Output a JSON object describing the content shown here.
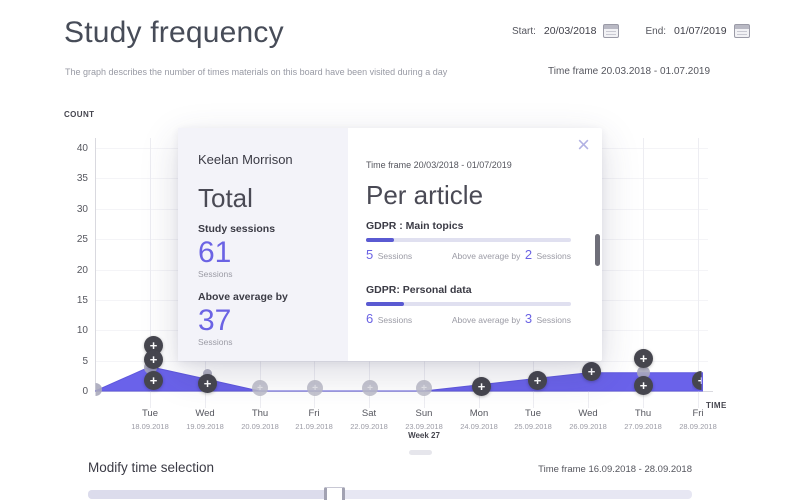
{
  "header": {
    "title": "Study frequency",
    "description": "The graph describes the number of times materials on this board have been visited during a day",
    "start_label": "Start:",
    "start_value": "20/03/2018",
    "end_label": "End:",
    "end_value": "01/07/2019",
    "time_frame": "Time frame 20.03.2018 - 01.07.2019"
  },
  "icons": {
    "plus": "+",
    "close": "×"
  },
  "colors": {
    "accent": "#6b63e4",
    "area_fill": "#6a62ea",
    "bar_fill": "#5a5ad2",
    "add_button": "#46464e"
  },
  "chart_data": {
    "type": "area",
    "title": "Study frequency",
    "ylabel": "COUNT",
    "xlabel": "TIME",
    "week_annotation": "Week 27",
    "ylim": [
      0,
      40
    ],
    "y_tick_labels": [
      "40",
      "35",
      "30",
      "25",
      "20",
      "15",
      "10",
      "5",
      "0"
    ],
    "grid": true,
    "leading_edge_value": 0,
    "days": [
      {
        "name": "Tue",
        "date": "18.09.2018"
      },
      {
        "name": "Wed",
        "date": "19.09.2018"
      },
      {
        "name": "Thu",
        "date": "20.09.2018"
      },
      {
        "name": "Fri",
        "date": "21.09.2018"
      },
      {
        "name": "Sat",
        "date": "22.09.2018"
      },
      {
        "name": "Sun",
        "date": "23.09.2018"
      },
      {
        "name": "Mon",
        "date": "24.09.2018"
      },
      {
        "name": "Tue",
        "date": "25.09.2018"
      },
      {
        "name": "Wed",
        "date": "26.09.2018"
      },
      {
        "name": "Thu",
        "date": "27.09.2018"
      },
      {
        "name": "Fri",
        "date": "28.09.2018"
      }
    ],
    "values": [
      4,
      2,
      0,
      0,
      0,
      0,
      1,
      2,
      3,
      3,
      3
    ]
  },
  "modal": {
    "student_name": "Keelan Morrison",
    "time_frame": "Time frame 20/03/2018 - 01/07/2019",
    "total": {
      "heading": "Total",
      "sessions_label": "Study sessions",
      "sessions_value": "61",
      "sessions_unit": "Sessions",
      "above_label": "Above average by",
      "above_value": "37",
      "above_unit": "Sessions"
    },
    "per_article": {
      "heading": "Per article",
      "articles": [
        {
          "name": "GDPR : Main topics",
          "sessions": "5",
          "sessions_unit": "Sessions",
          "above_text": "Above average by",
          "above_value": "2",
          "above_unit": "Sessions"
        },
        {
          "name": "GDPR: Personal data",
          "sessions": "6",
          "sessions_unit": "Sessions",
          "above_text": "Above average by",
          "above_value": "3",
          "above_unit": "Sessions"
        }
      ]
    }
  },
  "footer": {
    "title": "Modify time selection",
    "time_frame": "Time frame 16.09.2018 - 28.09.2018"
  }
}
